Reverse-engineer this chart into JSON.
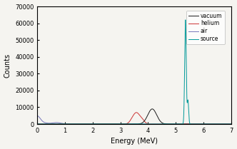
{
  "title": "",
  "xlabel": "Energy (MeV)",
  "ylabel": "Counts",
  "xlim": [
    0,
    7
  ],
  "ylim": [
    0,
    70000
  ],
  "yticks": [
    0,
    10000,
    20000,
    30000,
    40000,
    50000,
    60000,
    70000
  ],
  "xticks": [
    0,
    1,
    2,
    3,
    4,
    5,
    6,
    7
  ],
  "legend_labels": [
    "vacuum",
    "helium",
    "air",
    "source"
  ],
  "colors": {
    "vacuum": "#1a1a1a",
    "helium": "#cc3333",
    "air": "#7777bb",
    "source": "#009999"
  },
  "bg_color": "#f5f4f0",
  "fig_bg": "#f5f4f0"
}
